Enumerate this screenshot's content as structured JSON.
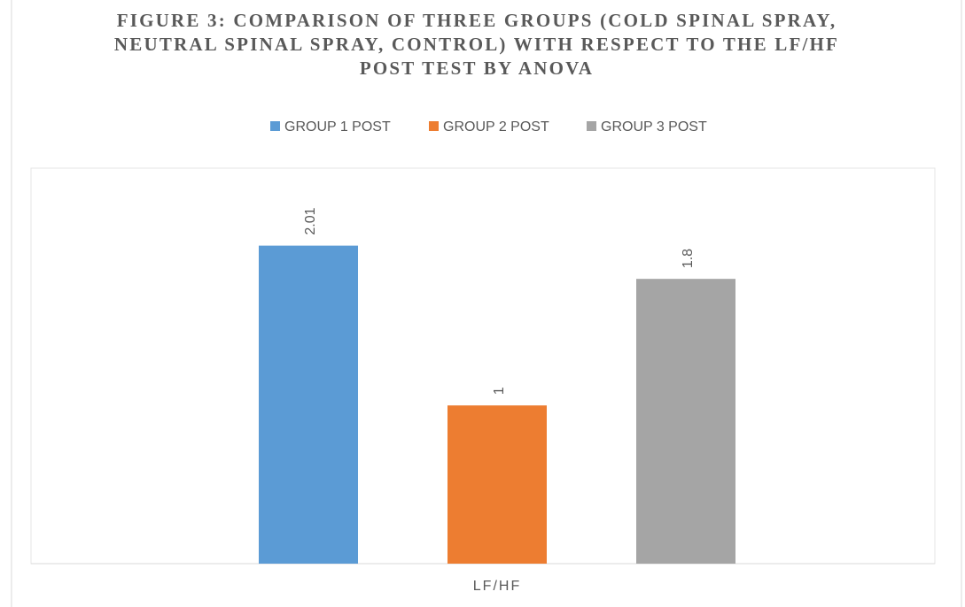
{
  "chart_data": {
    "type": "bar",
    "title": "FIGURE 3: COMPARISON OF THREE GROUPS (COLD SPINAL SPRAY, NEUTRAL SPINAL SPRAY, CONTROL) WITH RESPECT TO THE LF/HF POST TEST BY ANOVA",
    "categories": [
      "LF/HF"
    ],
    "series": [
      {
        "name": "GROUP 1 POST",
        "color": "#5b9bd5",
        "values": [
          2.01
        ]
      },
      {
        "name": "GROUP 2 POST",
        "color": "#ed7d31",
        "values": [
          1
        ]
      },
      {
        "name": "GROUP 3 POST",
        "color": "#a5a5a5",
        "values": [
          1.8
        ]
      }
    ],
    "ylim": [
      0,
      2.5
    ],
    "legend": "top"
  }
}
